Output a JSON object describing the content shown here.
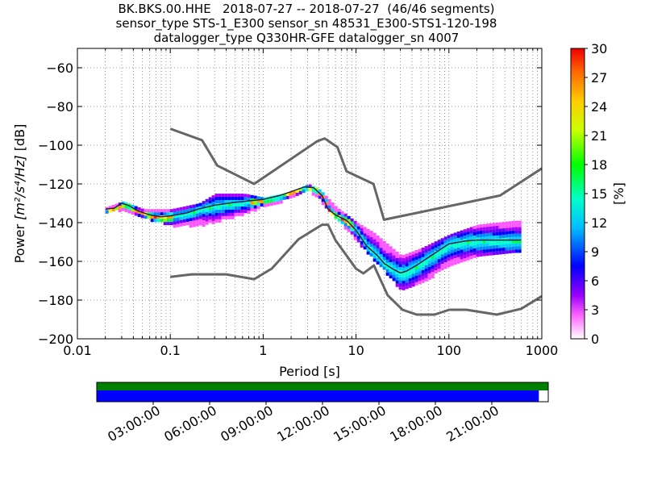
{
  "header": {
    "title_lines": [
      "BK.BKS.00.HHE   2018-07-27 -- 2018-07-27  (46/46 segments)",
      "sensor_type STS-1_E300 sensor_sn 48531_E300-STS1-120-198",
      "datalogger_type Q330HR-GFE datalogger_sn 4007"
    ]
  },
  "chart_data": {
    "type": "heatmap",
    "xlabel": "Period [s]",
    "ylabel": "Power [m²/s⁴/Hz] [dB]",
    "ylabel_parts": {
      "prefix": "Power ",
      "unit": "[m²/s⁴/Hz]",
      "suffix": " [dB]"
    },
    "x_scale": "log",
    "xlim": [
      0.01,
      1000
    ],
    "ylim": [
      -200,
      -50
    ],
    "x_ticks": [
      {
        "value": 0.01,
        "label": "0.01"
      },
      {
        "value": 0.1,
        "label": "0.1"
      },
      {
        "value": 1,
        "label": "1"
      },
      {
        "value": 10,
        "label": "10"
      },
      {
        "value": 100,
        "label": "100"
      },
      {
        "value": 1000,
        "label": "1000"
      }
    ],
    "y_ticks": [
      -60,
      -80,
      -100,
      -120,
      -140,
      -160,
      -180,
      -200
    ],
    "grid": "dotted",
    "colorbar": {
      "label": "[%]",
      "range": [
        0,
        30
      ],
      "ticks": [
        0,
        3,
        6,
        9,
        12,
        15,
        18,
        21,
        24,
        27,
        30
      ]
    },
    "nhnm": {
      "period": [
        0.1,
        0.22,
        0.32,
        0.8,
        3.8,
        4.6,
        6.3,
        7.9,
        15.4,
        20,
        354.8,
        1000
      ],
      "db": [
        -91.5,
        -97.4,
        -110.5,
        -120,
        -98,
        -96.5,
        -101,
        -113.5,
        -120,
        -138.5,
        -126,
        -112
      ]
    },
    "nlnm": {
      "period": [
        0.1,
        0.17,
        0.4,
        0.8,
        1.24,
        2.4,
        4.3,
        5,
        6,
        10,
        12,
        15.6,
        21.9,
        31.6,
        45,
        70,
        101,
        154,
        328,
        600,
        1000
      ],
      "db": [
        -168,
        -166.7,
        -166.7,
        -169.2,
        -163.7,
        -148.6,
        -141.1,
        -141.1,
        -149,
        -163.8,
        -166.2,
        -162.1,
        -177.5,
        -185,
        -187.5,
        -187.5,
        -185,
        -185,
        -187.5,
        -184.5,
        -178
      ]
    },
    "median": {
      "period": [
        0.02,
        0.025,
        0.03,
        0.035,
        0.045,
        0.06,
        0.08,
        0.1,
        0.15,
        0.2,
        0.3,
        0.5,
        0.8,
        1,
        1.5,
        2,
        2.8,
        3.5,
        4.3,
        5,
        6,
        8,
        10,
        13,
        17,
        20,
        25,
        30,
        35,
        45,
        60,
        80,
        100,
        150,
        200,
        300,
        500,
        600
      ],
      "db": [
        -133,
        -132.5,
        -130,
        -131,
        -134,
        -136,
        -137,
        -136.5,
        -135,
        -133,
        -131,
        -129.5,
        -128.5,
        -128,
        -126,
        -124,
        -121.5,
        -122,
        -126,
        -133,
        -136,
        -139,
        -144,
        -152,
        -157,
        -161,
        -164,
        -166,
        -165,
        -162,
        -158,
        -154,
        -151,
        -149.5,
        -149,
        -149,
        -149,
        -149
      ]
    },
    "band_max": {
      "period": [
        0.02,
        0.03,
        0.05,
        0.1,
        0.2,
        0.3,
        0.6,
        1,
        2,
        3,
        4,
        6,
        10,
        15,
        20,
        30,
        50,
        100,
        200,
        500,
        600
      ],
      "db": [
        -132,
        -129,
        -133,
        -133,
        -130,
        -125,
        -125,
        -127,
        -124,
        -120,
        -123,
        -132,
        -140,
        -145,
        -150,
        -157,
        -153,
        -146,
        -141,
        -139,
        -139
      ]
    },
    "band_min": {
      "period": [
        0.02,
        0.03,
        0.05,
        0.1,
        0.2,
        0.3,
        0.6,
        1,
        2,
        3,
        4,
        6,
        10,
        15,
        20,
        30,
        50,
        100,
        200,
        500,
        600
      ],
      "db": [
        -134,
        -133,
        -137,
        -141,
        -141,
        -139,
        -135,
        -131,
        -127,
        -123,
        -128,
        -137,
        -149,
        -159,
        -165,
        -175,
        -170,
        -162,
        -157,
        -155,
        -155
      ]
    },
    "time_axis": {
      "labels": [
        "03:00:00",
        "06:00:00",
        "09:00:00",
        "12:00:00",
        "15:00:00",
        "18:00:00",
        "21:00:00"
      ],
      "hours": [
        3,
        6,
        9,
        12,
        15,
        18,
        21
      ],
      "range_hours": [
        0,
        24
      ],
      "data_coverage_end_hour": 23.5,
      "colors": {
        "top": "#008000",
        "bottom": "#0000ff"
      }
    }
  }
}
